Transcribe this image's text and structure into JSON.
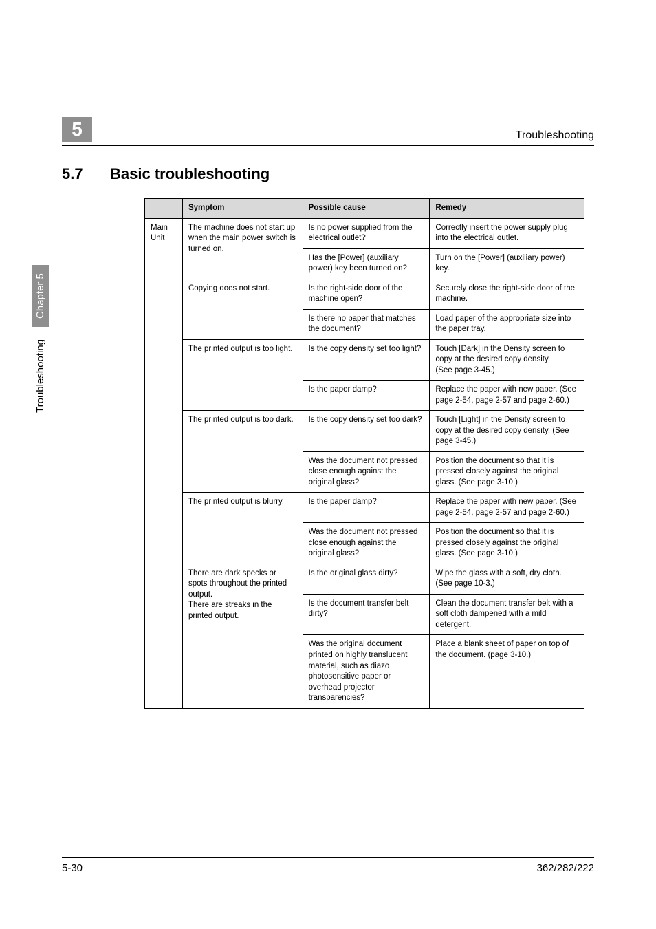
{
  "header": {
    "chapter_number": "5",
    "running_title": "Troubleshooting"
  },
  "section": {
    "number": "5.7",
    "title": "Basic troubleshooting"
  },
  "side_tab": {
    "chapter_label": "Chapter 5",
    "area_label": "Troubleshooting"
  },
  "footer": {
    "page": "5-30",
    "model": "362/282/222"
  },
  "table": {
    "headers": [
      "",
      "Symptom",
      "Possible cause",
      "Remedy"
    ],
    "group_label": "Main Unit",
    "colors": {
      "header_bg": "#d9d9d9",
      "border": "#000000",
      "text": "#000000",
      "badge_bg": "#8f8f8f",
      "badge_fg": "#ffffff"
    },
    "rows": [
      {
        "symptom": "The machine does not start up when the main power switch is turned on.",
        "symptom_rowspan": 2,
        "cause": "Is no power supplied from the electrical outlet?",
        "remedy": "Correctly insert the power supply plug into the electrical outlet."
      },
      {
        "cause": "Has the [Power] (auxiliary power) key been turned on?",
        "remedy": "Turn on the [Power] (auxiliary power) key."
      },
      {
        "symptom": "Copying does not start.",
        "symptom_rowspan": 2,
        "cause": "Is the right-side door of the machine open?",
        "remedy": "Securely close the right-side door of the machine."
      },
      {
        "cause": "Is there no paper that matches the document?",
        "remedy": "Load paper of the appropriate size into the paper tray."
      },
      {
        "symptom": "The printed output is too light.",
        "symptom_rowspan": 2,
        "cause": "Is the copy density set too light?",
        "remedy": "Touch [Dark] in the Density screen to copy at the desired copy density.\n(See page 3-45.)"
      },
      {
        "cause": "Is the paper damp?",
        "remedy": "Replace the paper with new paper. (See page 2-54, page 2-57 and page 2-60.)"
      },
      {
        "symptom": "The printed output is too dark.",
        "symptom_rowspan": 2,
        "cause": "Is the copy density set too dark?",
        "remedy": "Touch [Light] in the Density screen to copy at the desired copy density. (See page 3-45.)"
      },
      {
        "cause": "Was the document not pressed close enough against the original glass?",
        "remedy": "Position the document so that it is pressed closely against the original glass. (See page 3-10.)"
      },
      {
        "symptom": "The printed output is blurry.",
        "symptom_rowspan": 2,
        "cause": "Is the paper damp?",
        "remedy": "Replace the paper with new paper. (See page 2-54, page 2-57 and page 2-60.)"
      },
      {
        "cause": "Was the document not pressed close enough against the original glass?",
        "remedy": "Position the document so that it is pressed closely against the original glass. (See page 3-10.)"
      },
      {
        "symptom": "There are dark specks or spots throughout the printed output.\nThere are streaks in the printed output.",
        "symptom_rowspan": 3,
        "cause": "Is the original glass dirty?",
        "remedy": "Wipe the glass with a soft, dry cloth. (See page 10-3.)"
      },
      {
        "cause": "Is the document transfer belt dirty?",
        "remedy": "Clean the document transfer belt with a soft cloth dampened with a mild detergent."
      },
      {
        "cause": "Was the original document printed on highly translucent material, such as diazo photosensitive paper or overhead projector transparencies?",
        "remedy": "Place a blank sheet of paper on top of the document. (page 3-10.)"
      }
    ]
  }
}
